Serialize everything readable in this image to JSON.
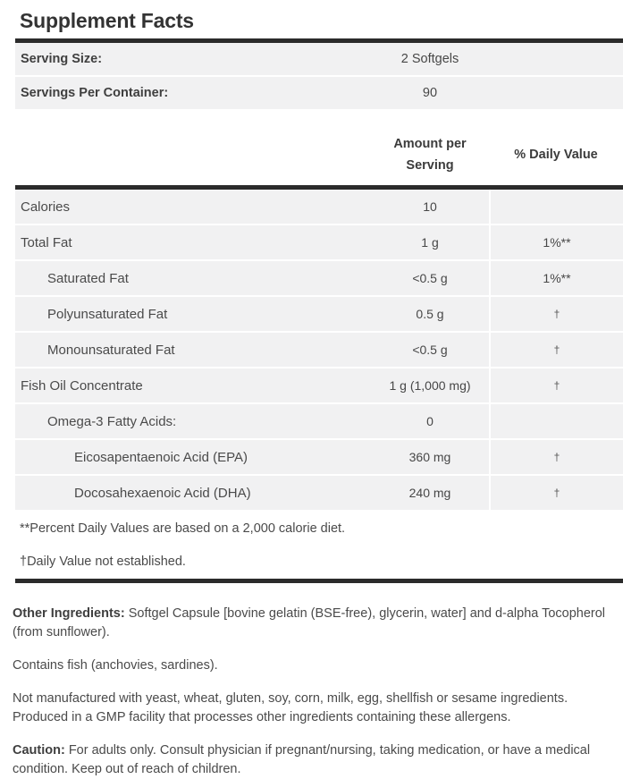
{
  "title": "Supplement Facts",
  "serving_info": {
    "rows": [
      {
        "label": "Serving Size:",
        "value": "2 Softgels"
      },
      {
        "label": "Servings Per Container:",
        "value": "90"
      }
    ]
  },
  "table": {
    "headers": {
      "amount": "Amount per Serving",
      "daily_value": "% Daily Value"
    },
    "rows": [
      {
        "label": "Calories",
        "amount": "10",
        "dv": ""
      },
      {
        "label": "Total Fat",
        "amount": "1 g",
        "dv": "1%**"
      },
      {
        "label": "Saturated Fat",
        "amount": "<0.5 g",
        "dv": "1%**"
      },
      {
        "label": "Polyunsaturated Fat",
        "amount": "0.5 g",
        "dv": "†"
      },
      {
        "label": "Monounsaturated Fat",
        "amount": "<0.5 g",
        "dv": "†"
      },
      {
        "label": "Fish Oil Concentrate",
        "amount": "1 g (1,000 mg)",
        "dv": "†"
      },
      {
        "label": "Omega-3 Fatty Acids:",
        "amount": "0",
        "dv": ""
      },
      {
        "label": "Eicosapentaenoic Acid (EPA)",
        "amount": "360 mg",
        "dv": "†"
      },
      {
        "label": "Docosahexaenoic Acid (DHA)",
        "amount": "240 mg",
        "dv": "†"
      }
    ]
  },
  "footnotes": {
    "percent_dv": "**Percent Daily Values are based on a 2,000 calorie diet.",
    "not_established": "†Daily Value not established."
  },
  "paragraphs": {
    "other_ingredients": {
      "lead": "Other Ingredients:",
      "text": " Softgel Capsule [bovine gelatin (BSE-free), glycerin, water] and d-alpha Tocopherol (from sunflower)."
    },
    "contains": "Contains fish (anchovies, sardines).",
    "allergens": "Not manufactured with yeast, wheat, gluten, soy, corn, milk, egg, shellfish or sesame ingredients. Produced in a GMP facility that processes other ingredients containing these allergens.",
    "caution": {
      "lead": "Caution:",
      "text": " For adults only. Consult physician if pregnant/nursing, taking medication, or have a medical condition. Keep out of reach of children."
    }
  },
  "colors": {
    "bar": "#2b2b2b",
    "row_background": "#f1f1f2",
    "text": "#4a4a4a"
  }
}
